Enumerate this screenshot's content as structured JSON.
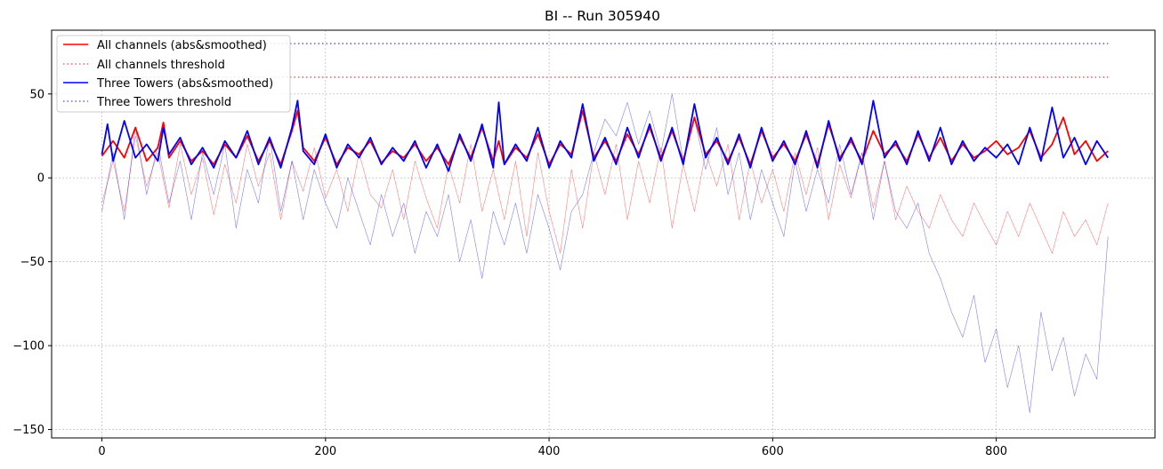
{
  "chart_data": {
    "type": "line",
    "title": "BI -- Run 305940",
    "xlabel": "",
    "ylabel": "",
    "xlim": [
      -45,
      942
    ],
    "ylim": [
      -155,
      88
    ],
    "xticks": [
      0,
      200,
      400,
      600,
      800
    ],
    "yticks": [
      -150,
      -100,
      -50,
      0,
      50
    ],
    "xtick_labels": [
      "0",
      "200",
      "400",
      "600",
      "800"
    ],
    "ytick_labels": [
      "−150",
      "−100",
      "−50",
      "0",
      "50"
    ],
    "grid": true,
    "legend_position": "top-left",
    "legend": [
      {
        "label": "All channels (abs&smoothed)",
        "color": "#ff0000",
        "style": "solid"
      },
      {
        "label": "All channels threshold",
        "color": "#ff6666",
        "style": "dotted"
      },
      {
        "label": "Three Towers (abs&smoothed)",
        "color": "#0000ff",
        "style": "solid"
      },
      {
        "label": "Three Towers threshold",
        "color": "#6666ff",
        "style": "dotted"
      }
    ],
    "series": [
      {
        "name": "All channels (abs&smoothed)",
        "color": "#ff0000",
        "kind": "smoothed",
        "x": [
          0,
          10,
          20,
          30,
          40,
          50,
          55,
          60,
          70,
          80,
          90,
          100,
          110,
          120,
          130,
          140,
          150,
          160,
          170,
          175,
          180,
          190,
          200,
          210,
          220,
          230,
          240,
          250,
          260,
          270,
          280,
          290,
          300,
          310,
          320,
          330,
          340,
          350,
          355,
          360,
          370,
          380,
          390,
          400,
          410,
          420,
          430,
          440,
          450,
          460,
          470,
          480,
          490,
          500,
          510,
          520,
          530,
          540,
          550,
          560,
          570,
          580,
          590,
          600,
          610,
          620,
          630,
          640,
          650,
          660,
          670,
          680,
          690,
          700,
          710,
          720,
          730,
          740,
          750,
          760,
          770,
          780,
          790,
          800,
          810,
          820,
          830,
          840,
          850,
          860,
          870,
          880,
          890,
          900
        ],
        "y": [
          13,
          22,
          12,
          30,
          10,
          18,
          33,
          12,
          22,
          10,
          16,
          8,
          20,
          12,
          25,
          10,
          22,
          8,
          28,
          40,
          18,
          10,
          24,
          8,
          18,
          14,
          22,
          9,
          16,
          12,
          20,
          10,
          18,
          8,
          24,
          12,
          30,
          10,
          22,
          8,
          18,
          12,
          26,
          8,
          20,
          14,
          40,
          12,
          22,
          10,
          26,
          14,
          30,
          12,
          28,
          10,
          36,
          14,
          22,
          10,
          24,
          8,
          28,
          12,
          20,
          10,
          26,
          8,
          32,
          12,
          22,
          10,
          28,
          14,
          20,
          10,
          26,
          12,
          24,
          10,
          20,
          12,
          16,
          22,
          14,
          18,
          28,
          12,
          20,
          36,
          14,
          22,
          10,
          16
        ]
      },
      {
        "name": "All channels threshold",
        "color": "#ff6666",
        "kind": "threshold",
        "x": [
          0,
          900
        ],
        "y": [
          60,
          60
        ]
      },
      {
        "name": "Three Towers (abs&smoothed)",
        "color": "#0000ff",
        "kind": "smoothed",
        "x": [
          0,
          5,
          10,
          20,
          30,
          40,
          50,
          55,
          60,
          70,
          80,
          90,
          100,
          110,
          120,
          130,
          140,
          150,
          160,
          170,
          175,
          180,
          190,
          200,
          210,
          220,
          230,
          240,
          250,
          260,
          270,
          280,
          290,
          300,
          310,
          320,
          330,
          340,
          350,
          355,
          360,
          370,
          380,
          390,
          400,
          410,
          420,
          430,
          440,
          450,
          460,
          470,
          480,
          490,
          500,
          510,
          520,
          530,
          540,
          550,
          560,
          570,
          580,
          590,
          600,
          610,
          620,
          630,
          640,
          650,
          660,
          670,
          680,
          690,
          700,
          710,
          720,
          730,
          740,
          750,
          760,
          770,
          780,
          790,
          800,
          810,
          820,
          830,
          840,
          850,
          860,
          870,
          880,
          890,
          900
        ],
        "y": [
          14,
          32,
          10,
          34,
          12,
          20,
          10,
          30,
          14,
          24,
          8,
          18,
          6,
          22,
          12,
          28,
          8,
          24,
          6,
          30,
          46,
          16,
          8,
          26,
          6,
          20,
          12,
          24,
          8,
          18,
          10,
          22,
          6,
          20,
          4,
          26,
          10,
          32,
          6,
          45,
          8,
          20,
          10,
          30,
          6,
          22,
          12,
          44,
          10,
          24,
          8,
          30,
          12,
          32,
          10,
          30,
          8,
          44,
          12,
          24,
          8,
          26,
          6,
          30,
          10,
          22,
          8,
          28,
          6,
          34,
          10,
          24,
          8,
          46,
          12,
          22,
          8,
          28,
          10,
          30,
          8,
          22,
          10,
          18,
          12,
          20,
          8,
          30,
          10,
          42,
          12,
          24,
          8,
          22,
          12
        ]
      },
      {
        "name": "Three Towers threshold",
        "color": "#6666ff",
        "kind": "threshold",
        "x": [
          0,
          900
        ],
        "y": [
          80,
          80
        ]
      },
      {
        "name": "",
        "color": "#ff0000",
        "kind": "raw",
        "x": [
          0,
          10,
          20,
          30,
          40,
          50,
          60,
          70,
          80,
          90,
          100,
          110,
          120,
          130,
          140,
          150,
          160,
          170,
          180,
          190,
          200,
          210,
          220,
          230,
          240,
          250,
          260,
          270,
          280,
          290,
          300,
          310,
          320,
          330,
          340,
          350,
          360,
          370,
          380,
          390,
          400,
          410,
          420,
          430,
          440,
          450,
          460,
          470,
          480,
          490,
          500,
          510,
          520,
          530,
          540,
          550,
          560,
          570,
          580,
          590,
          600,
          610,
          620,
          630,
          640,
          650,
          660,
          670,
          680,
          690,
          700,
          710,
          720,
          730,
          740,
          750,
          760,
          770,
          780,
          790,
          800,
          810,
          820,
          830,
          840,
          850,
          860,
          870,
          880,
          890,
          900
        ],
        "y": [
          -15,
          10,
          -20,
          25,
          -5,
          15,
          -18,
          20,
          -10,
          12,
          -22,
          8,
          -15,
          20,
          -5,
          15,
          -25,
          10,
          -8,
          18,
          -12,
          5,
          -20,
          15,
          -10,
          -18,
          5,
          -25,
          10,
          -12,
          -30,
          8,
          -15,
          20,
          -20,
          5,
          -25,
          10,
          -35,
          15,
          -20,
          -45,
          5,
          -30,
          15,
          -10,
          20,
          -25,
          10,
          -15,
          18,
          -30,
          8,
          -20,
          15,
          -5,
          20,
          -25,
          10,
          -15,
          5,
          -20,
          15,
          -10,
          18,
          -25,
          8,
          -12,
          15,
          -18,
          10,
          -25,
          -5,
          -20,
          -30,
          -10,
          -25,
          -35,
          -15,
          -28,
          -40,
          -20,
          -35,
          -15,
          -30,
          -45,
          -20,
          -35,
          -25,
          -40,
          -15
        ]
      },
      {
        "name": "",
        "color": "#0000ff",
        "kind": "raw",
        "x": [
          0,
          10,
          20,
          30,
          40,
          50,
          60,
          70,
          80,
          90,
          100,
          110,
          120,
          130,
          140,
          150,
          160,
          170,
          180,
          190,
          200,
          210,
          220,
          230,
          240,
          250,
          260,
          270,
          280,
          290,
          300,
          310,
          320,
          330,
          340,
          350,
          360,
          370,
          380,
          390,
          400,
          410,
          420,
          430,
          440,
          450,
          460,
          470,
          480,
          490,
          500,
          510,
          520,
          530,
          540,
          550,
          560,
          570,
          580,
          590,
          600,
          610,
          620,
          630,
          640,
          650,
          660,
          670,
          680,
          690,
          700,
          710,
          720,
          730,
          740,
          750,
          760,
          770,
          780,
          790,
          800,
          810,
          820,
          830,
          840,
          850,
          860,
          870,
          880,
          890,
          900
        ],
        "y": [
          -20,
          15,
          -25,
          30,
          -10,
          20,
          -15,
          10,
          -25,
          15,
          -10,
          20,
          -30,
          5,
          -15,
          25,
          -20,
          10,
          -25,
          5,
          -15,
          -30,
          0,
          -20,
          -40,
          -10,
          -35,
          -15,
          -45,
          -20,
          -35,
          -10,
          -50,
          -25,
          -60,
          -20,
          -40,
          -15,
          -45,
          -10,
          -30,
          -55,
          -20,
          -10,
          15,
          35,
          25,
          45,
          20,
          40,
          15,
          50,
          10,
          35,
          5,
          30,
          -10,
          15,
          -25,
          5,
          -15,
          -35,
          10,
          -20,
          5,
          -15,
          20,
          -10,
          15,
          -25,
          10,
          -20,
          -30,
          -15,
          -45,
          -60,
          -80,
          -95,
          -70,
          -110,
          -90,
          -125,
          -100,
          -140,
          -80,
          -115,
          -95,
          -130,
          -105,
          -120,
          -35
        ]
      }
    ]
  }
}
